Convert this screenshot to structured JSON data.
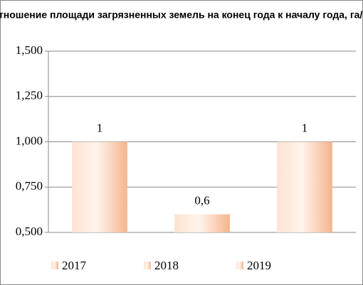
{
  "chart_data": {
    "type": "bar",
    "title": "Отношение площади загрязненных земель на конец года к началу года, га/га",
    "categories": [
      "2017",
      "2018",
      "2019"
    ],
    "values": [
      1,
      0.6,
      1
    ],
    "value_labels": [
      "1",
      "0,6",
      "1"
    ],
    "color": "#f5b48c",
    "ylim": [
      0.5,
      1.5
    ],
    "yticks": [
      {
        "value": 0.5,
        "label": "0,500"
      },
      {
        "value": 0.75,
        "label": "0,750"
      },
      {
        "value": 1,
        "label": "1,000"
      },
      {
        "value": 1.25,
        "label": "1,250"
      },
      {
        "value": 1.5,
        "label": "1,500"
      }
    ],
    "grid": true,
    "legend": "bottom"
  }
}
